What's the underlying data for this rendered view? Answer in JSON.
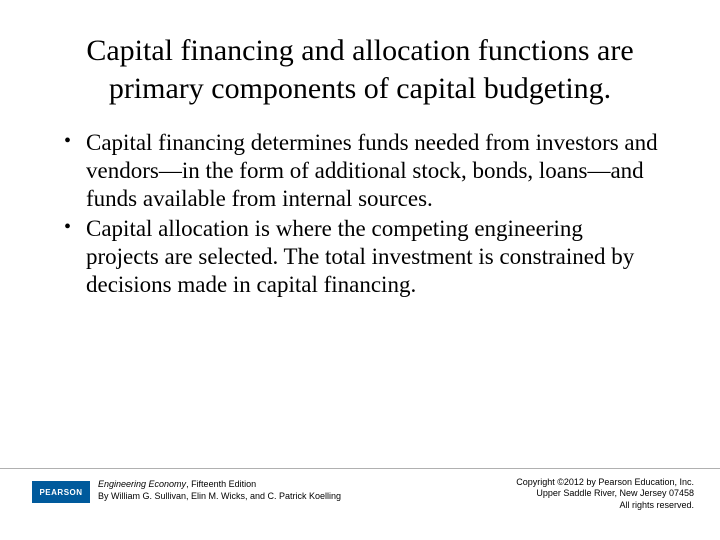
{
  "title": "Capital financing and allocation functions are primary components of capital budgeting.",
  "bullets": [
    "Capital financing determines funds needed from investors and vendors—in the form of additional stock, bonds, loans—and funds available from internal sources.",
    "Capital allocation is where the competing engineering projects are selected.  The total investment is constrained by decisions made in capital financing."
  ],
  "footer": {
    "logo_text": "PEARSON",
    "book_title": "Engineering Economy",
    "book_edition": ", Fifteenth Edition",
    "authors": "By William G. Sullivan, Elin M. Wicks, and C. Patrick Koelling",
    "copyright_line1": "Copyright ©2012 by Pearson Education, Inc.",
    "copyright_line2": "Upper Saddle River, New Jersey 07458",
    "copyright_line3": "All rights reserved."
  },
  "colors": {
    "logo_bg": "#005a9c",
    "text": "#000000",
    "divider": "#b0b0b0",
    "background": "#ffffff"
  },
  "typography": {
    "title_fontsize": 30,
    "body_fontsize": 23,
    "footer_fontsize": 9,
    "font_family_main": "Times New Roman",
    "font_family_footer": "Arial"
  }
}
